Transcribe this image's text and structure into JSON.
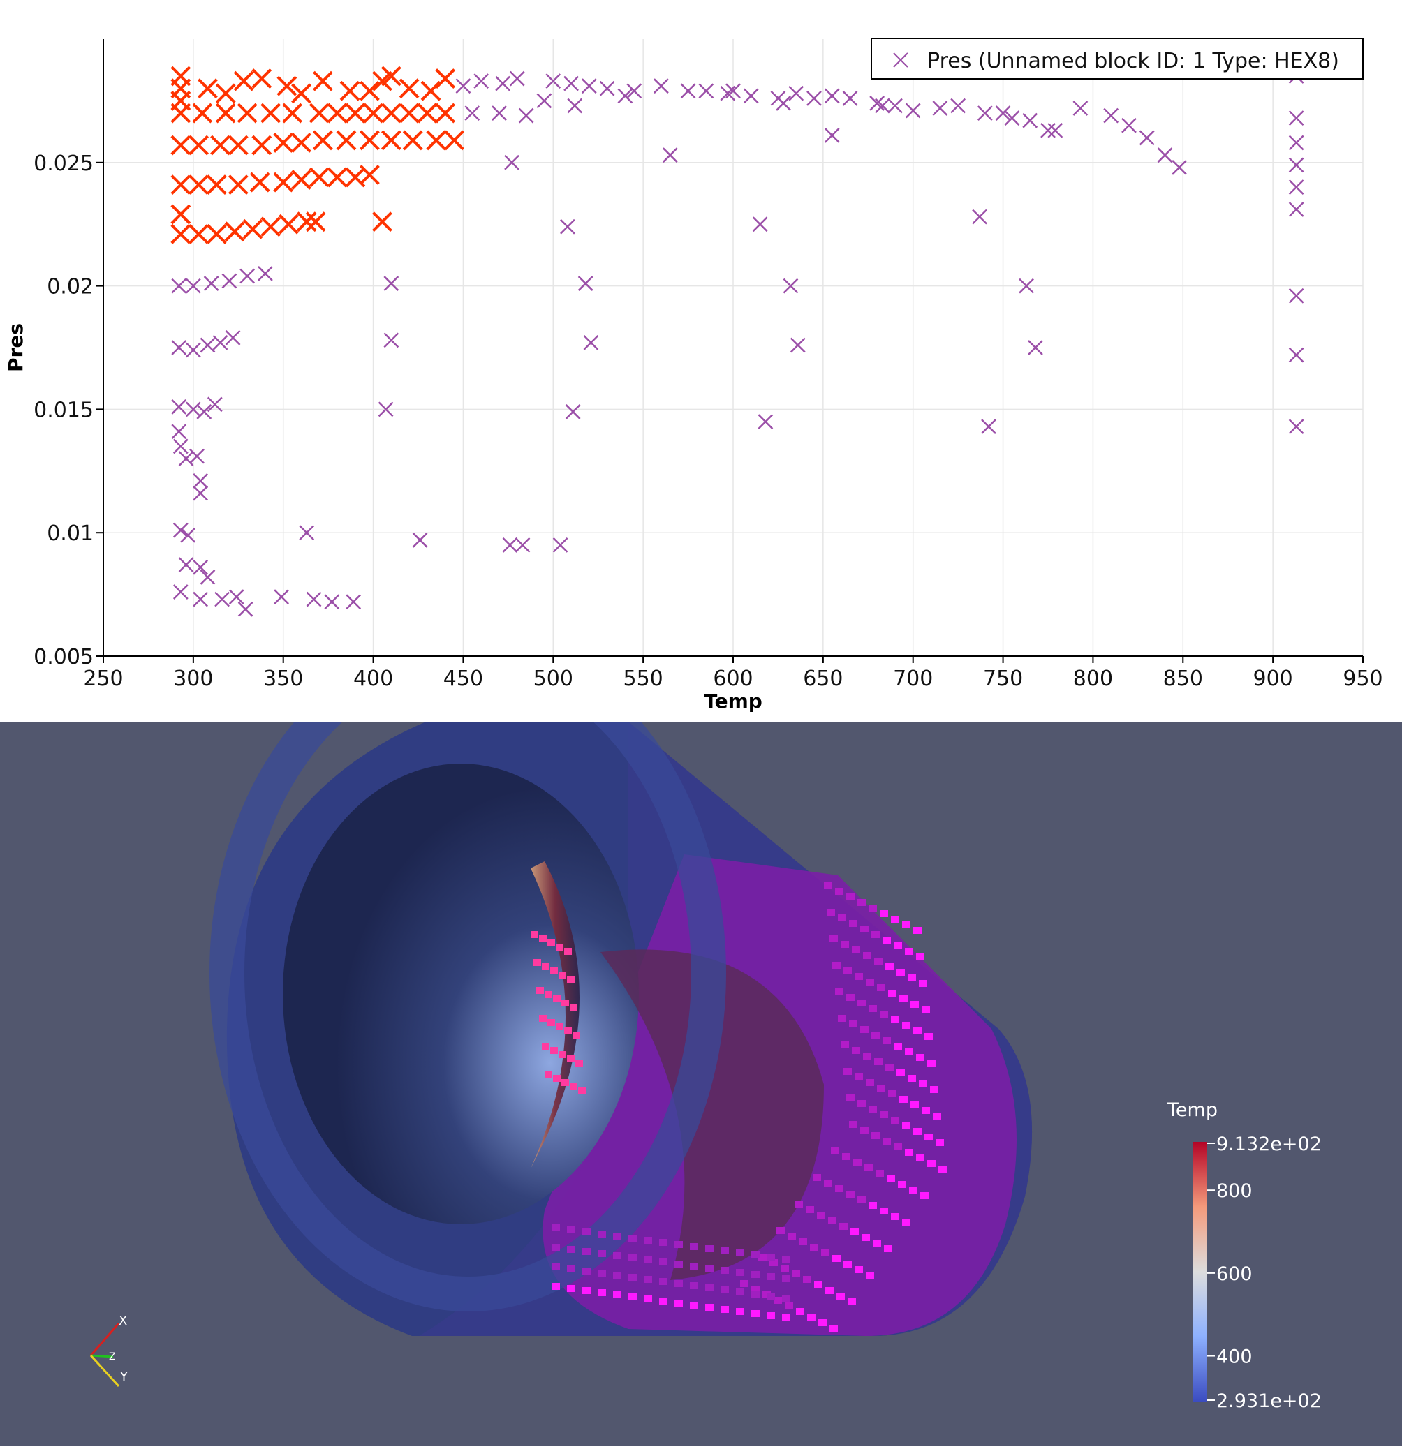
{
  "chart_data": {
    "type": "scatter",
    "title": "",
    "xlabel": "Temp",
    "ylabel": "Pres",
    "xlim": [
      250,
      950
    ],
    "ylim": [
      0.005,
      0.03
    ],
    "x_ticks": [
      "250",
      "300",
      "350",
      "400",
      "450",
      "500",
      "550",
      "600",
      "650",
      "700",
      "750",
      "800",
      "850",
      "900",
      "950"
    ],
    "y_ticks": [
      "0.005",
      "0.01",
      "0.015",
      "0.02",
      "0.025"
    ],
    "grid": true,
    "legend_position": "top-right",
    "series": [
      {
        "name": "Pres (Unnamed block ID: 1 Type: HEX8)",
        "color": "#9b4fa8",
        "marker": "x",
        "points": [
          [
            450,
            0.0281
          ],
          [
            460,
            0.0283
          ],
          [
            472,
            0.0282
          ],
          [
            480,
            0.0284
          ],
          [
            500,
            0.0283
          ],
          [
            510,
            0.0282
          ],
          [
            520,
            0.0281
          ],
          [
            530,
            0.028
          ],
          [
            545,
            0.0279
          ],
          [
            560,
            0.0281
          ],
          [
            575,
            0.0279
          ],
          [
            585,
            0.0279
          ],
          [
            600,
            0.0279
          ],
          [
            610,
            0.0277
          ],
          [
            625,
            0.0276
          ],
          [
            635,
            0.0278
          ],
          [
            645,
            0.0276
          ],
          [
            655,
            0.0277
          ],
          [
            665,
            0.0276
          ],
          [
            680,
            0.0274
          ],
          [
            690,
            0.0273
          ],
          [
            700,
            0.0271
          ],
          [
            715,
            0.0272
          ],
          [
            725,
            0.0273
          ],
          [
            740,
            0.027
          ],
          [
            755,
            0.0268
          ],
          [
            765,
            0.0267
          ],
          [
            775,
            0.0263
          ],
          [
            793,
            0.0272
          ],
          [
            810,
            0.0269
          ],
          [
            820,
            0.0265
          ],
          [
            830,
            0.026
          ],
          [
            840,
            0.0253
          ],
          [
            848,
            0.0248
          ],
          [
            455,
            0.027
          ],
          [
            470,
            0.027
          ],
          [
            485,
            0.0269
          ],
          [
            495,
            0.0275
          ],
          [
            512,
            0.0273
          ],
          [
            540,
            0.0277
          ],
          [
            597,
            0.0278
          ],
          [
            628,
            0.0274
          ],
          [
            683,
            0.0273
          ],
          [
            750,
            0.027
          ],
          [
            779,
            0.0263
          ],
          [
            477,
            0.025
          ],
          [
            508,
            0.0224
          ],
          [
            565,
            0.0253
          ],
          [
            615,
            0.0225
          ],
          [
            655,
            0.0261
          ],
          [
            737,
            0.0228
          ],
          [
            913,
            0.0285
          ],
          [
            913,
            0.0268
          ],
          [
            913,
            0.0258
          ],
          [
            913,
            0.0249
          ],
          [
            913,
            0.024
          ],
          [
            913,
            0.0231
          ],
          [
            292,
            0.02
          ],
          [
            300,
            0.02
          ],
          [
            310,
            0.0201
          ],
          [
            320,
            0.0202
          ],
          [
            330,
            0.0204
          ],
          [
            340,
            0.0205
          ],
          [
            292,
            0.0175
          ],
          [
            300,
            0.0174
          ],
          [
            308,
            0.0176
          ],
          [
            315,
            0.0177
          ],
          [
            322,
            0.0179
          ],
          [
            292,
            0.0151
          ],
          [
            300,
            0.015
          ],
          [
            306,
            0.0149
          ],
          [
            312,
            0.0152
          ],
          [
            292,
            0.0141
          ],
          [
            293,
            0.0135
          ],
          [
            296,
            0.013
          ],
          [
            302,
            0.0131
          ],
          [
            304,
            0.0121
          ],
          [
            304,
            0.0116
          ],
          [
            293,
            0.0101
          ],
          [
            297,
            0.0099
          ],
          [
            296,
            0.0087
          ],
          [
            304,
            0.0086
          ],
          [
            308,
            0.0082
          ],
          [
            293,
            0.0076
          ],
          [
            304,
            0.0073
          ],
          [
            316,
            0.0073
          ],
          [
            324,
            0.0074
          ],
          [
            329,
            0.0069
          ],
          [
            349,
            0.0074
          ],
          [
            367,
            0.0073
          ],
          [
            377,
            0.0072
          ],
          [
            389,
            0.0072
          ],
          [
            363,
            0.01
          ],
          [
            426,
            0.0097
          ],
          [
            476,
            0.0095
          ],
          [
            483,
            0.0095
          ],
          [
            504,
            0.0095
          ],
          [
            410,
            0.0201
          ],
          [
            410,
            0.0178
          ],
          [
            407,
            0.015
          ],
          [
            518,
            0.0201
          ],
          [
            521,
            0.0177
          ],
          [
            511,
            0.0149
          ],
          [
            632,
            0.02
          ],
          [
            636,
            0.0176
          ],
          [
            618,
            0.0145
          ],
          [
            763,
            0.02
          ],
          [
            768,
            0.0175
          ],
          [
            742,
            0.0143
          ],
          [
            913,
            0.0196
          ],
          [
            913,
            0.0172
          ],
          [
            913,
            0.0143
          ]
        ]
      },
      {
        "name": "",
        "color": "#ff3300",
        "marker": "x",
        "points": [
          [
            293,
            0.0285
          ],
          [
            293,
            0.028
          ],
          [
            293,
            0.0275
          ],
          [
            293,
            0.027
          ],
          [
            308,
            0.028
          ],
          [
            318,
            0.0278
          ],
          [
            328,
            0.0283
          ],
          [
            338,
            0.0284
          ],
          [
            352,
            0.0281
          ],
          [
            360,
            0.0278
          ],
          [
            372,
            0.0283
          ],
          [
            387,
            0.0279
          ],
          [
            398,
            0.0279
          ],
          [
            405,
            0.0283
          ],
          [
            410,
            0.0285
          ],
          [
            420,
            0.028
          ],
          [
            432,
            0.0279
          ],
          [
            440,
            0.0284
          ],
          [
            305,
            0.027
          ],
          [
            318,
            0.027
          ],
          [
            330,
            0.027
          ],
          [
            343,
            0.027
          ],
          [
            355,
            0.027
          ],
          [
            370,
            0.027
          ],
          [
            380,
            0.027
          ],
          [
            390,
            0.027
          ],
          [
            400,
            0.027
          ],
          [
            410,
            0.027
          ],
          [
            420,
            0.027
          ],
          [
            430,
            0.027
          ],
          [
            440,
            0.027
          ],
          [
            293,
            0.0257
          ],
          [
            303,
            0.0257
          ],
          [
            315,
            0.0257
          ],
          [
            325,
            0.0257
          ],
          [
            338,
            0.0257
          ],
          [
            350,
            0.0258
          ],
          [
            360,
            0.0258
          ],
          [
            372,
            0.0259
          ],
          [
            385,
            0.0259
          ],
          [
            398,
            0.0259
          ],
          [
            410,
            0.0259
          ],
          [
            422,
            0.0259
          ],
          [
            435,
            0.0259
          ],
          [
            445,
            0.0259
          ],
          [
            293,
            0.0241
          ],
          [
            303,
            0.0241
          ],
          [
            313,
            0.0241
          ],
          [
            325,
            0.0241
          ],
          [
            337,
            0.0242
          ],
          [
            350,
            0.0242
          ],
          [
            360,
            0.0243
          ],
          [
            370,
            0.0244
          ],
          [
            380,
            0.0244
          ],
          [
            390,
            0.0244
          ],
          [
            398,
            0.0245
          ],
          [
            293,
            0.0229
          ],
          [
            293,
            0.0221
          ],
          [
            303,
            0.0221
          ],
          [
            313,
            0.0221
          ],
          [
            323,
            0.0222
          ],
          [
            333,
            0.0223
          ],
          [
            343,
            0.0224
          ],
          [
            353,
            0.0225
          ],
          [
            363,
            0.0226
          ],
          [
            368,
            0.0226
          ],
          [
            405,
            0.0226
          ]
        ]
      }
    ]
  },
  "render": {
    "colorbar": {
      "title": "Temp",
      "range": [
        293.1,
        913.2
      ],
      "max_label": "9.132e+02",
      "min_label": "2.931e+02",
      "tick_labels": [
        "800",
        "600",
        "400"
      ],
      "tick_values": [
        800,
        600,
        400
      ],
      "colors": [
        "#3b4cc0",
        "#8db0fe",
        "#dddddd",
        "#f49a7b",
        "#b40426"
      ]
    },
    "axes_labels": {
      "x": "X",
      "y": "Y",
      "z": "Z"
    },
    "background": "#52576e"
  }
}
